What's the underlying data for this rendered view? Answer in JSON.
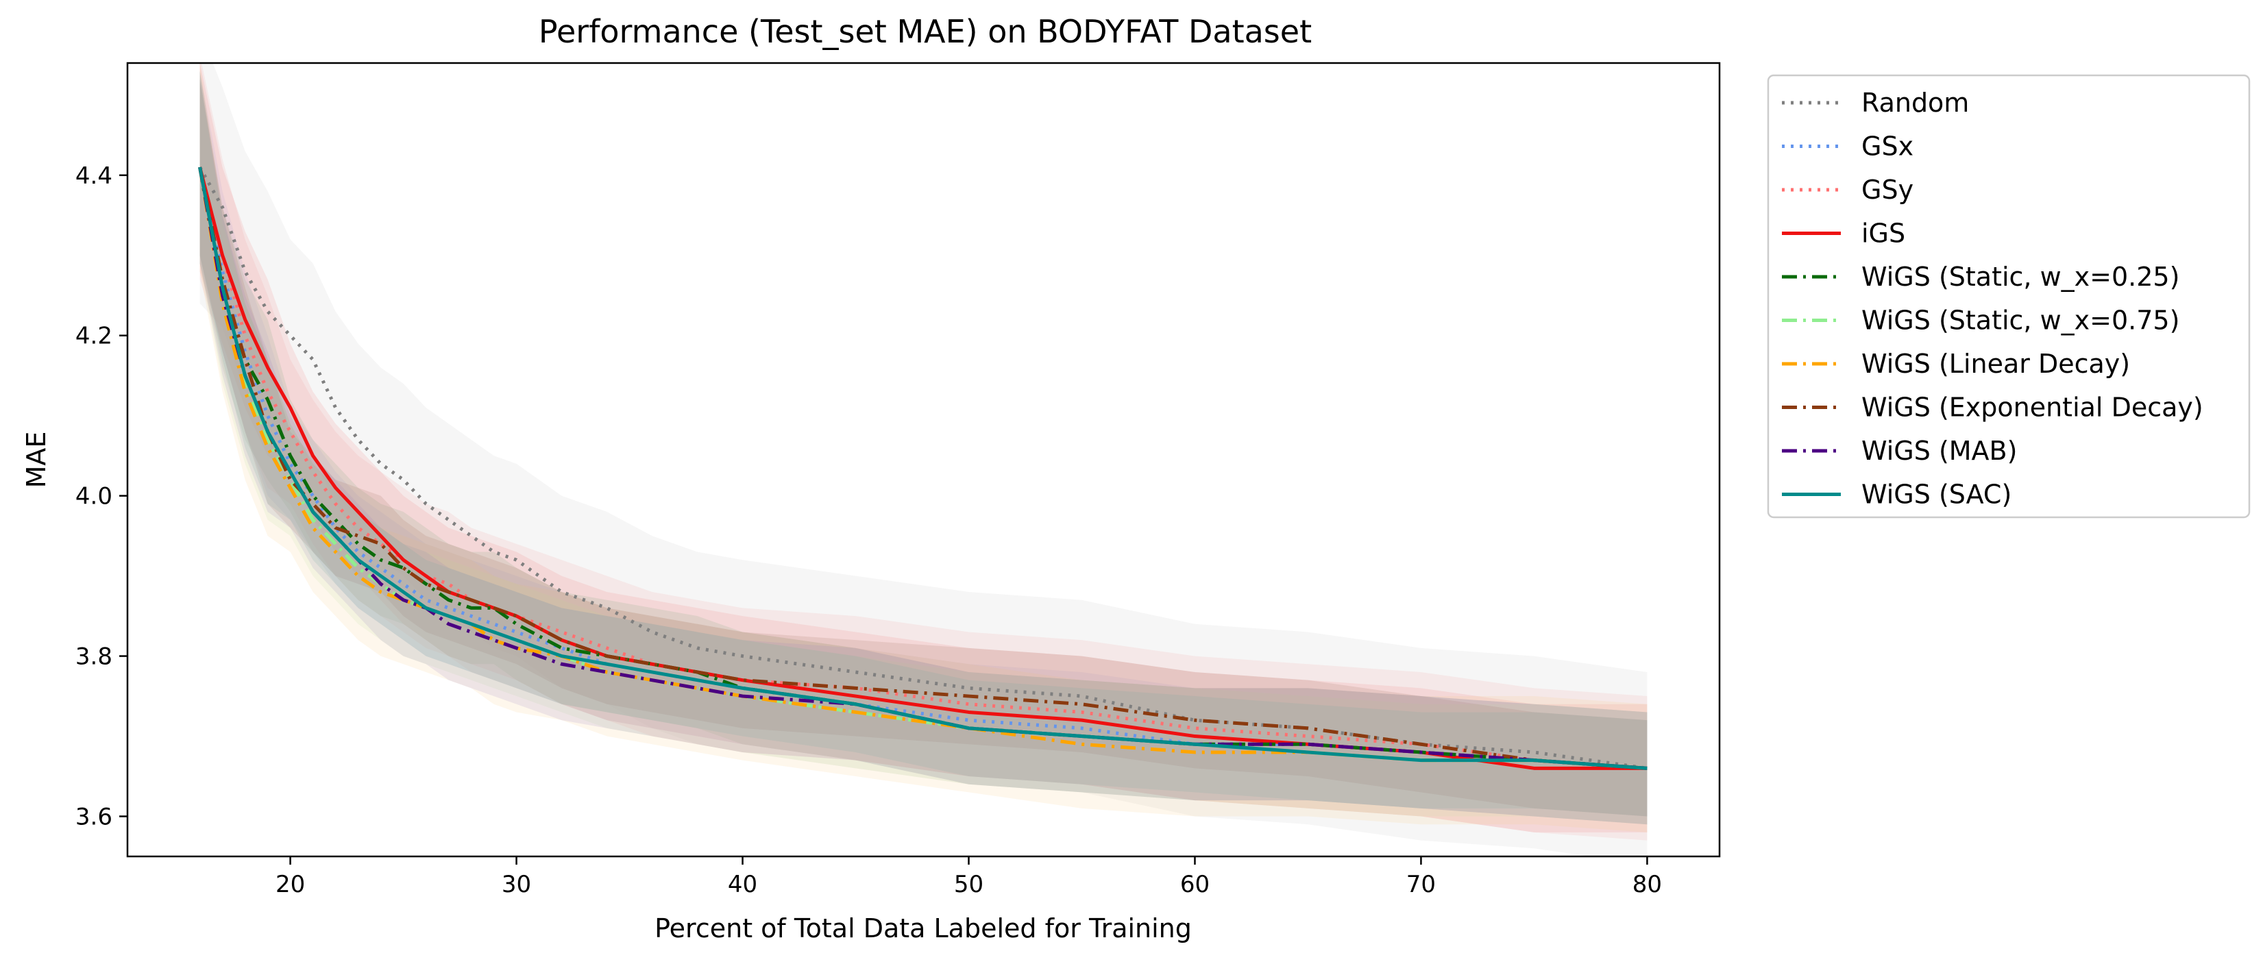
{
  "chart_data": {
    "type": "line",
    "title": "Performance (Test_set MAE) on BODYFAT Dataset",
    "xlabel": "Percent of Total Data Labeled for Training",
    "ylabel": "MAE",
    "xlim": [
      12.8,
      83.2
    ],
    "ylim": [
      3.55,
      4.54
    ],
    "xticks": [
      20,
      30,
      40,
      50,
      60,
      70,
      80
    ],
    "yticks": [
      3.6,
      3.8,
      4.0,
      4.2,
      4.4
    ],
    "ytick_labels": [
      "3.6",
      "3.8",
      "4.0",
      "4.2",
      "4.4"
    ],
    "grid": false,
    "legend_position": "outside-right",
    "x": [
      16,
      17,
      18,
      19,
      20,
      21,
      22,
      23,
      24,
      25,
      26,
      27,
      28,
      29,
      30,
      32,
      34,
      36,
      38,
      40,
      45,
      50,
      55,
      60,
      65,
      70,
      75,
      80
    ],
    "series": [
      {
        "name": "Random",
        "color": "#7f7f7f",
        "style": "dotted",
        "width": 5,
        "band": 0.12,
        "bandColor": "#c8c8c8",
        "values": [
          4.41,
          4.36,
          4.28,
          4.23,
          4.2,
          4.17,
          4.11,
          4.07,
          4.04,
          4.02,
          3.99,
          3.97,
          3.95,
          3.93,
          3.92,
          3.88,
          3.86,
          3.83,
          3.81,
          3.8,
          3.78,
          3.76,
          3.75,
          3.72,
          3.71,
          3.69,
          3.68,
          3.66
        ]
      },
      {
        "name": "GSx",
        "color": "#6495ed",
        "style": "dotted",
        "width": 5,
        "band": 0.07,
        "bandColor": "#8fa8e8",
        "values": [
          4.41,
          4.28,
          4.18,
          4.1,
          4.04,
          4.0,
          3.96,
          3.93,
          3.91,
          3.89,
          3.87,
          3.86,
          3.85,
          3.84,
          3.83,
          3.81,
          3.79,
          3.78,
          3.77,
          3.76,
          3.74,
          3.72,
          3.71,
          3.69,
          3.69,
          3.68,
          3.67,
          3.66
        ]
      },
      {
        "name": "GSy",
        "color": "#ff7070",
        "style": "dotted",
        "width": 5,
        "band": 0.09,
        "bandColor": "#f5a0a0",
        "values": [
          4.41,
          4.3,
          4.2,
          4.13,
          4.08,
          4.03,
          3.99,
          3.96,
          3.94,
          3.92,
          3.9,
          3.89,
          3.87,
          3.86,
          3.85,
          3.83,
          3.81,
          3.79,
          3.78,
          3.77,
          3.76,
          3.74,
          3.73,
          3.71,
          3.7,
          3.69,
          3.67,
          3.66
        ]
      },
      {
        "name": "iGS",
        "color": "#ee1111",
        "style": "solid",
        "width": 5,
        "band": 0.08,
        "bandColor": "#f08080",
        "values": [
          4.41,
          4.3,
          4.22,
          4.16,
          4.11,
          4.05,
          4.01,
          3.98,
          3.95,
          3.92,
          3.9,
          3.88,
          3.87,
          3.86,
          3.85,
          3.82,
          3.8,
          3.79,
          3.78,
          3.77,
          3.75,
          3.73,
          3.72,
          3.7,
          3.69,
          3.68,
          3.66,
          3.66
        ]
      },
      {
        "name": "WiGS (Static, w_x=0.25)",
        "color": "#0b6b0b",
        "style": "dashdot",
        "width": 5,
        "band": 0.07,
        "bandColor": "#7aa87a",
        "values": [
          4.41,
          4.26,
          4.17,
          4.12,
          4.05,
          4.0,
          3.97,
          3.94,
          3.92,
          3.91,
          3.89,
          3.87,
          3.86,
          3.86,
          3.84,
          3.81,
          3.8,
          3.79,
          3.78,
          3.76,
          3.74,
          3.71,
          3.7,
          3.69,
          3.69,
          3.68,
          3.67,
          3.66
        ]
      },
      {
        "name": "WiGS (Static, w_x=0.75)",
        "color": "#90ee90",
        "style": "dashdot",
        "width": 5,
        "band": 0.07,
        "bandColor": "#b8e8a8",
        "values": [
          4.41,
          4.24,
          4.14,
          4.07,
          4.02,
          3.97,
          3.94,
          3.91,
          3.89,
          3.87,
          3.86,
          3.85,
          3.84,
          3.83,
          3.82,
          3.8,
          3.78,
          3.77,
          3.76,
          3.75,
          3.73,
          3.71,
          3.7,
          3.69,
          3.68,
          3.67,
          3.67,
          3.66
        ]
      },
      {
        "name": "WiGS (Linear Decay)",
        "color": "#ffa500",
        "style": "dashdot",
        "width": 5,
        "band": 0.08,
        "bandColor": "#f8cc88",
        "values": [
          4.41,
          4.24,
          4.13,
          4.06,
          4.01,
          3.96,
          3.93,
          3.9,
          3.88,
          3.87,
          3.86,
          3.85,
          3.84,
          3.82,
          3.81,
          3.8,
          3.78,
          3.77,
          3.76,
          3.75,
          3.73,
          3.71,
          3.69,
          3.68,
          3.68,
          3.67,
          3.67,
          3.66
        ]
      },
      {
        "name": "WiGS (Exponential Decay)",
        "color": "#8b3a0f",
        "style": "dashdot",
        "width": 5,
        "band": 0.06,
        "bandColor": "#a07060",
        "values": [
          4.41,
          4.27,
          4.17,
          4.08,
          4.02,
          3.99,
          3.96,
          3.95,
          3.94,
          3.91,
          3.89,
          3.88,
          3.87,
          3.86,
          3.85,
          3.82,
          3.8,
          3.79,
          3.78,
          3.77,
          3.76,
          3.75,
          3.74,
          3.72,
          3.71,
          3.69,
          3.67,
          3.66
        ]
      },
      {
        "name": "WiGS (MAB)",
        "color": "#4b0082",
        "style": "dashdot",
        "width": 5,
        "band": 0.07,
        "bandColor": "#9b80c0",
        "values": [
          4.41,
          4.25,
          4.15,
          4.08,
          4.03,
          3.98,
          3.95,
          3.92,
          3.89,
          3.87,
          3.86,
          3.84,
          3.83,
          3.82,
          3.81,
          3.79,
          3.78,
          3.77,
          3.76,
          3.75,
          3.74,
          3.71,
          3.7,
          3.69,
          3.69,
          3.68,
          3.67,
          3.66
        ]
      },
      {
        "name": "WiGS (SAC)",
        "color": "#008b8b",
        "style": "solid",
        "width": 5,
        "band": 0.06,
        "bandColor": "#70a8a0",
        "values": [
          4.41,
          4.26,
          4.15,
          4.08,
          4.03,
          3.98,
          3.95,
          3.92,
          3.9,
          3.88,
          3.86,
          3.85,
          3.84,
          3.83,
          3.82,
          3.8,
          3.79,
          3.78,
          3.77,
          3.76,
          3.74,
          3.71,
          3.7,
          3.69,
          3.68,
          3.67,
          3.67,
          3.66
        ]
      }
    ]
  }
}
